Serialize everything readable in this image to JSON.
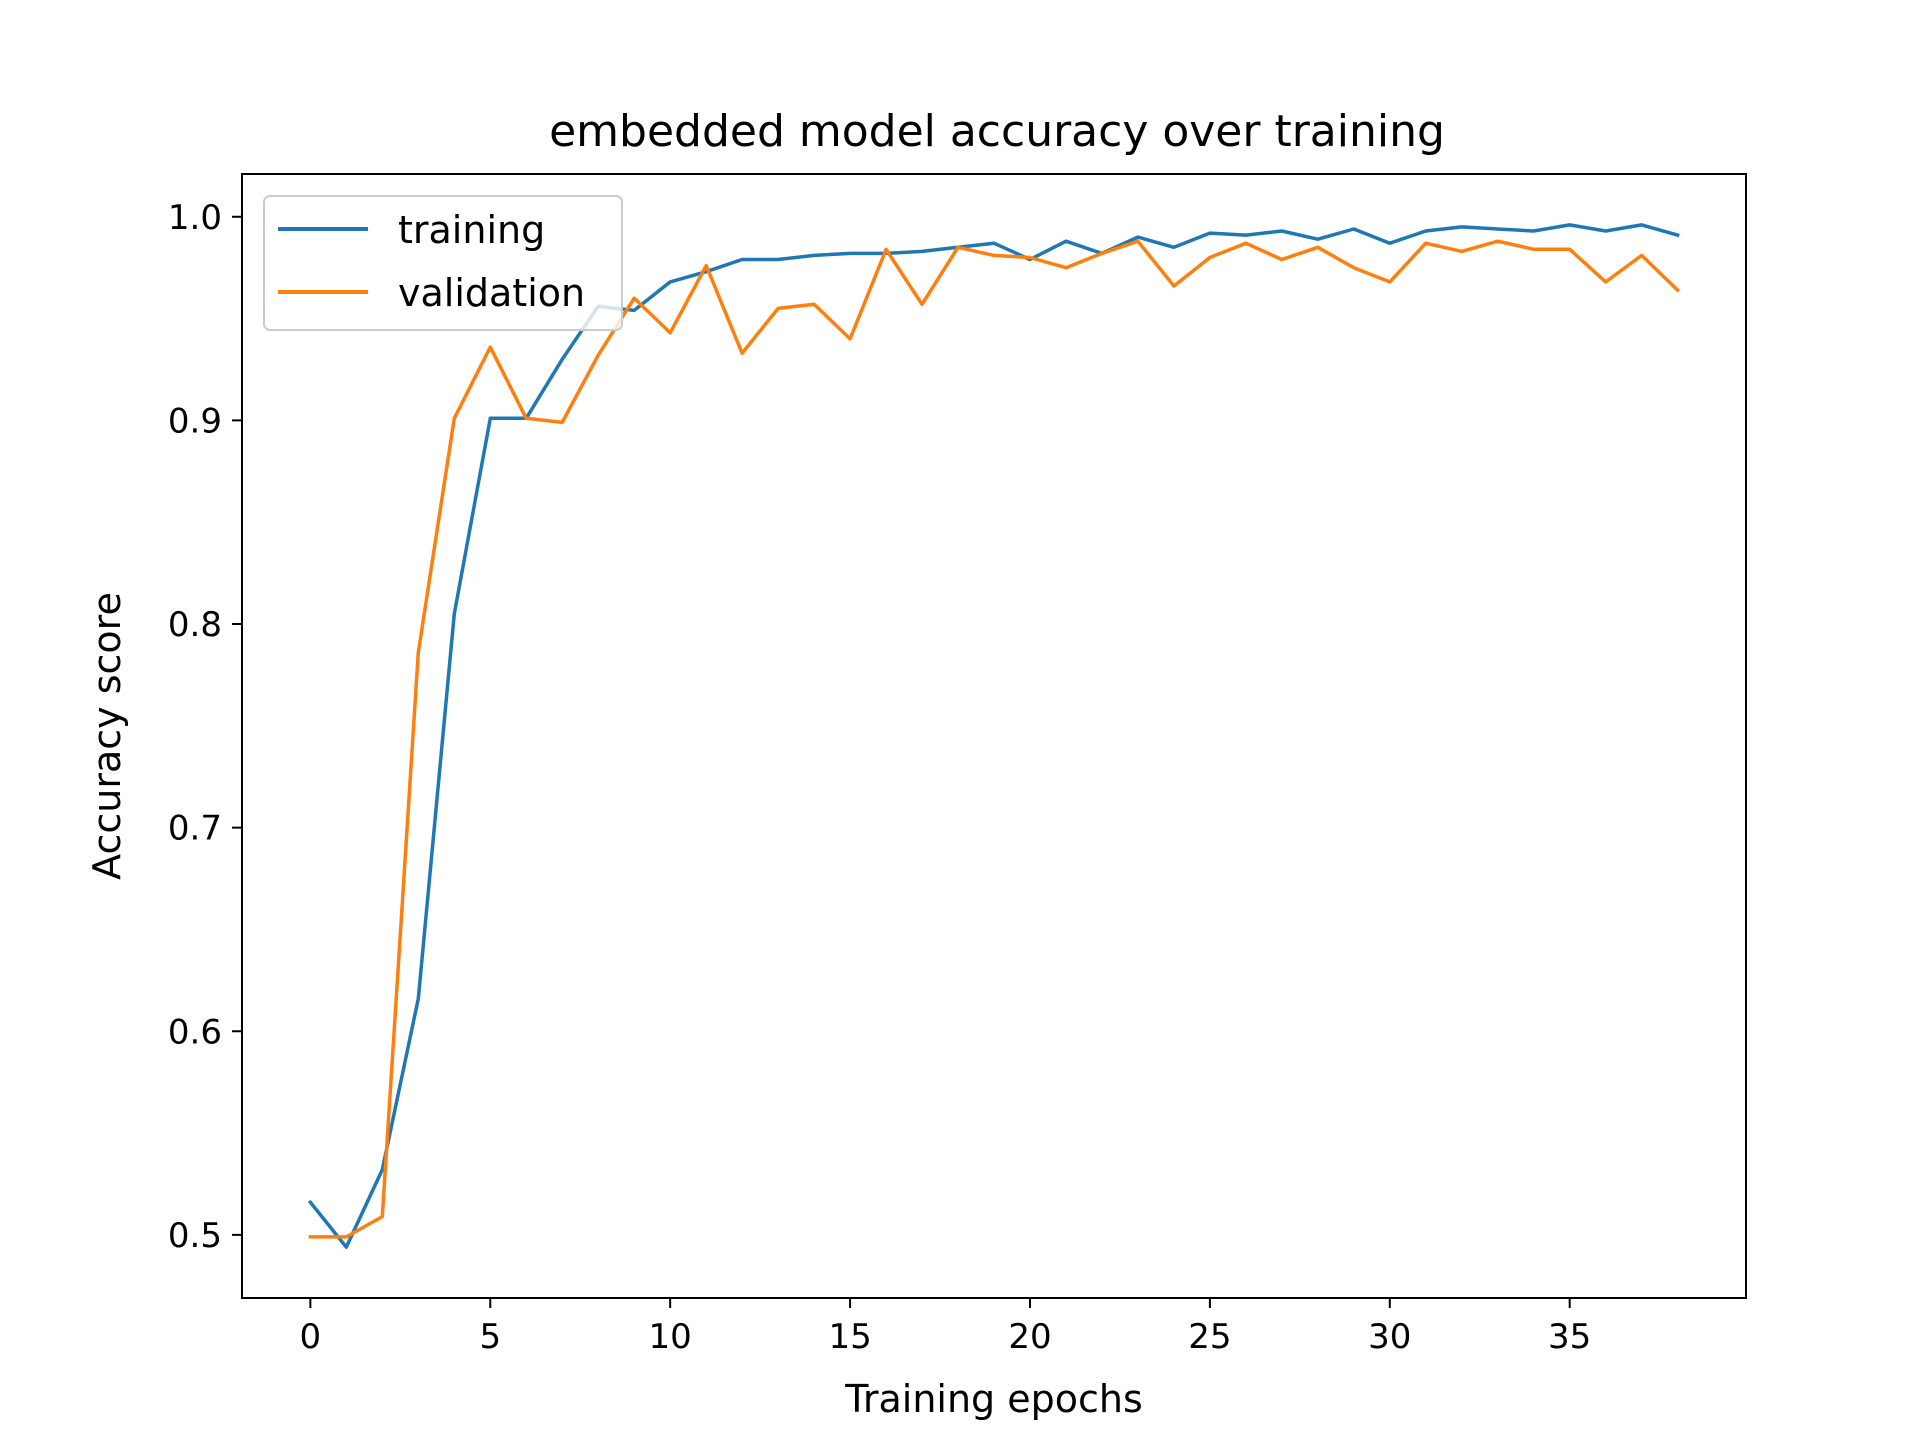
{
  "chart_data": {
    "type": "line",
    "title": "embedded model accuracy over training",
    "xlabel": "Training epochs",
    "ylabel": "Accuracy score",
    "xlim": [
      -1.9,
      39.9
    ],
    "ylim": [
      0.469,
      1.021
    ],
    "xticks": [
      0,
      5,
      10,
      15,
      20,
      25,
      30,
      35
    ],
    "yticks": [
      0.5,
      0.6,
      0.7,
      0.8,
      0.9,
      1.0
    ],
    "ytick_labels": [
      "0.5",
      "0.6",
      "0.7",
      "0.8",
      "0.9",
      "1.0"
    ],
    "grid": false,
    "legend_position": "top-left",
    "x": [
      0,
      1,
      2,
      3,
      4,
      5,
      6,
      7,
      8,
      9,
      10,
      11,
      12,
      13,
      14,
      15,
      16,
      17,
      18,
      19,
      20,
      21,
      22,
      23,
      24,
      25,
      26,
      27,
      28,
      29,
      30,
      31,
      32,
      33,
      34,
      35,
      36,
      37,
      38
    ],
    "series": [
      {
        "name": "training",
        "color": "#1f77b4",
        "values": [
          0.516,
          0.494,
          0.532,
          0.616,
          0.805,
          0.901,
          0.901,
          0.93,
          0.956,
          0.954,
          0.968,
          0.973,
          0.979,
          0.979,
          0.981,
          0.982,
          0.982,
          0.983,
          0.985,
          0.987,
          0.979,
          0.988,
          0.982,
          0.99,
          0.985,
          0.992,
          0.991,
          0.993,
          0.989,
          0.994,
          0.987,
          0.993,
          0.995,
          0.994,
          0.993,
          0.996,
          0.993,
          0.996,
          0.991
        ]
      },
      {
        "name": "validation",
        "color": "#ff7f0e",
        "values": [
          0.499,
          0.499,
          0.509,
          0.786,
          0.901,
          0.936,
          0.901,
          0.899,
          0.932,
          0.96,
          0.943,
          0.976,
          0.933,
          0.955,
          0.957,
          0.94,
          0.984,
          0.957,
          0.985,
          0.981,
          0.98,
          0.975,
          0.982,
          0.988,
          0.966,
          0.98,
          0.987,
          0.979,
          0.985,
          0.975,
          0.968,
          0.987,
          0.983,
          0.988,
          0.984,
          0.984,
          0.968,
          0.981,
          0.964
        ]
      }
    ]
  }
}
